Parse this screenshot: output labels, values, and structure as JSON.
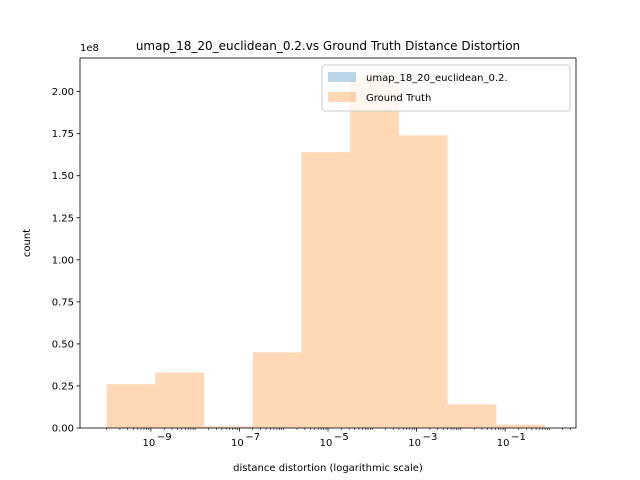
{
  "chart_data": {
    "type": "bar",
    "title": "umap_18_20_euclidean_0.2.vs Ground Truth Distance Distortion",
    "xlabel": "distance distortion (logarithmic scale)",
    "ylabel": "count",
    "x_scale": "log",
    "x_range_log10": [
      -10.6,
      0.6
    ],
    "ylim": [
      0,
      2.2
    ],
    "y_offset_text": "1e8",
    "y_ticks": [
      0.0,
      0.25,
      0.5,
      0.75,
      1.0,
      1.25,
      1.5,
      1.75,
      2.0
    ],
    "y_tick_labels": [
      "0.00",
      "0.25",
      "0.50",
      "0.75",
      "1.00",
      "1.25",
      "1.50",
      "1.75",
      "2.00"
    ],
    "x_ticks_log10": [
      -9,
      -7,
      -5,
      -3,
      -1
    ],
    "x_tick_bases": [
      "10",
      "10",
      "10",
      "10",
      "10"
    ],
    "x_tick_exponents": [
      "−9",
      "−7",
      "−5",
      "−3",
      "−1"
    ],
    "bin_edges_log10": [
      -10,
      -8.9,
      -7.8,
      -6.7,
      -5.6,
      -4.5,
      -3.4,
      -2.3,
      -1.2,
      -0.1,
      1.0
    ],
    "series": [
      {
        "name": "umap_18_20_euclidean_0.2.",
        "color": "#1f77b4",
        "alpha": 0.3,
        "values": [
          0,
          0,
          0,
          0,
          0,
          0,
          0,
          0,
          0,
          0
        ]
      },
      {
        "name": "Ground Truth",
        "color": "#ff7f0e",
        "alpha": 0.3,
        "values": [
          0.26,
          0.33,
          0.01,
          0.45,
          1.64,
          2.08,
          1.74,
          0.14,
          0.02,
          0
        ]
      }
    ],
    "legend_position": "top-right",
    "grid": false
  }
}
